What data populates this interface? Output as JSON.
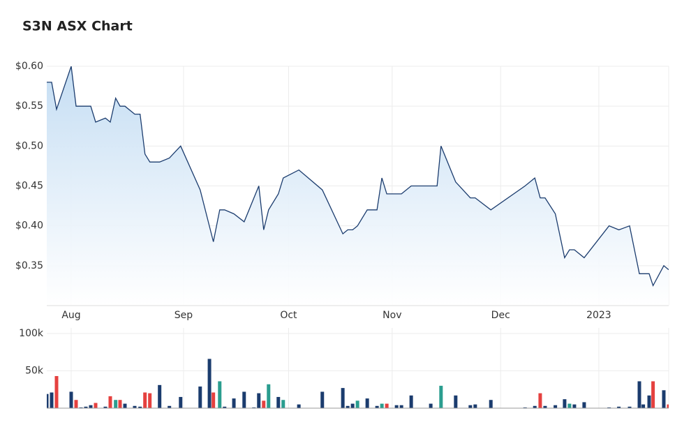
{
  "chart_data": [
    {
      "type": "area",
      "title": "S3N ASX Chart",
      "color": "#1b3c6e",
      "fill_top": "#c4ddf3",
      "grid": true,
      "x": [
        0,
        1,
        2,
        5,
        6,
        9,
        10,
        12,
        13,
        14.1,
        15,
        16,
        18,
        19.1,
        20.1,
        21.1,
        23.1,
        25.1,
        27.4,
        31.4,
        34.1,
        35.4,
        36.4,
        38.3,
        40.4,
        43.4,
        44.4,
        45.4,
        47.4,
        48.4,
        51.6,
        56.4,
        60.6,
        61.6,
        62.6,
        63.6,
        65.6,
        67.6,
        68.6,
        69.6,
        72.6,
        74.6,
        79.9,
        80.7,
        83.7,
        86.7,
        87.7,
        90.9,
        97.9,
        99.9,
        101,
        102,
        104.1,
        106,
        107,
        108,
        110,
        115.1,
        117.1,
        119.3,
        121.3,
        123.3,
        124.1,
        126.3,
        127.3
      ],
      "values": [
        0.58,
        0.58,
        0.546,
        0.6,
        0.55,
        0.55,
        0.53,
        0.535,
        0.53,
        0.56,
        0.55,
        0.55,
        0.54,
        0.54,
        0.49,
        0.48,
        0.48,
        0.485,
        0.5,
        0.445,
        0.38,
        0.42,
        0.42,
        0.415,
        0.405,
        0.45,
        0.395,
        0.42,
        0.44,
        0.46,
        0.47,
        0.445,
        0.39,
        0.395,
        0.395,
        0.4,
        0.42,
        0.42,
        0.46,
        0.44,
        0.44,
        0.45,
        0.45,
        0.5,
        0.455,
        0.435,
        0.435,
        0.42,
        0.45,
        0.46,
        0.435,
        0.435,
        0.415,
        0.36,
        0.37,
        0.37,
        0.36,
        0.4,
        0.395,
        0.4,
        0.34,
        0.34,
        0.325,
        0.35,
        0.345
      ],
      "xlim": [
        0,
        127.3
      ],
      "xticks": [
        {
          "value": 5,
          "label": "Aug"
        },
        {
          "value": 28,
          "label": "Sep"
        },
        {
          "value": 49.5,
          "label": "Oct"
        },
        {
          "value": 70.7,
          "label": "Nov"
        },
        {
          "value": 92.9,
          "label": "Dec"
        },
        {
          "value": 113,
          "label": "2023"
        }
      ],
      "ylim": [
        0.3,
        0.6
      ],
      "yticks": [
        {
          "value": 0.35,
          "label": "$0.35"
        },
        {
          "value": 0.4,
          "label": "$0.40"
        },
        {
          "value": 0.45,
          "label": "$0.45"
        },
        {
          "value": 0.5,
          "label": "$0.50"
        },
        {
          "value": 0.55,
          "label": "$0.55"
        },
        {
          "value": 0.6,
          "label": "$0.60"
        }
      ]
    },
    {
      "type": "bar",
      "grid": true,
      "x": [
        0,
        1,
        2,
        5,
        6,
        7,
        8,
        9,
        10,
        12,
        13,
        14.1,
        15,
        16,
        18,
        19.1,
        20.1,
        21.1,
        23.1,
        25.1,
        27.4,
        31.4,
        33.3,
        34.1,
        35.4,
        36.4,
        38.3,
        40.4,
        42.4,
        43.4,
        44.4,
        45.4,
        47.4,
        48.4,
        51.6,
        56.4,
        60.6,
        61.6,
        62.6,
        63.6,
        65.6,
        67.6,
        68.6,
        69.6,
        71.6,
        72.6,
        74.6,
        78.6,
        80.7,
        83.7,
        86.7,
        87.7,
        90.9,
        97.9,
        99.9,
        101,
        102,
        104.1,
        106,
        107,
        108,
        110,
        115.1,
        117.1,
        119.3,
        121.3,
        122.1,
        123.3,
        124.1,
        126.3,
        127.3
      ],
      "values": [
        19000,
        21000,
        43000,
        22000,
        11000,
        1000,
        2000,
        4000,
        7000,
        2000,
        16000,
        11000,
        11000,
        6000,
        3000,
        2000,
        21000,
        20000,
        31000,
        3000,
        15000,
        29000,
        66000,
        21000,
        36000,
        2000,
        13000,
        22000,
        1000,
        20000,
        10000,
        32000,
        15000,
        11000,
        5000,
        22000,
        27000,
        3000,
        6000,
        10000,
        13000,
        3000,
        6000,
        6000,
        4000,
        4000,
        17000,
        6000,
        30000,
        17000,
        4000,
        5000,
        11000,
        1000,
        3000,
        20000,
        3000,
        4000,
        12000,
        6000,
        5000,
        8000,
        1000,
        2000,
        2000,
        36000,
        5000,
        17000,
        36000,
        24000,
        5000
      ],
      "colors": [
        "#1b3c6e",
        "#1b3c6e",
        "#e5413f",
        "#1b3c6e",
        "#e5413f",
        "#1b3c6e",
        "#1b3c6e",
        "#1b3c6e",
        "#e5413f",
        "#1b3c6e",
        "#e5413f",
        "#2a9d8f",
        "#e5413f",
        "#1b3c6e",
        "#1b3c6e",
        "#1b3c6e",
        "#e5413f",
        "#e5413f",
        "#1b3c6e",
        "#1b3c6e",
        "#1b3c6e",
        "#1b3c6e",
        "#1b3c6e",
        "#e5413f",
        "#2a9d8f",
        "#1b3c6e",
        "#1b3c6e",
        "#1b3c6e",
        "#1b3c6e",
        "#1b3c6e",
        "#e5413f",
        "#2a9d8f",
        "#1b3c6e",
        "#2a9d8f",
        "#1b3c6e",
        "#1b3c6e",
        "#1b3c6e",
        "#1b3c6e",
        "#1b3c6e",
        "#2a9d8f",
        "#1b3c6e",
        "#1b3c6e",
        "#2a9d8f",
        "#e5413f",
        "#1b3c6e",
        "#1b3c6e",
        "#1b3c6e",
        "#1b3c6e",
        "#2a9d8f",
        "#1b3c6e",
        "#1b3c6e",
        "#1b3c6e",
        "#1b3c6e",
        "#1b3c6e",
        "#1b3c6e",
        "#e5413f",
        "#1b3c6e",
        "#1b3c6e",
        "#1b3c6e",
        "#2a9d8f",
        "#1b3c6e",
        "#1b3c6e",
        "#1b3c6e",
        "#1b3c6e",
        "#1b3c6e",
        "#1b3c6e",
        "#1b3c6e",
        "#1b3c6e",
        "#e5413f",
        "#1b3c6e",
        "#e5413f"
      ],
      "ylim": [
        0,
        100000
      ],
      "yticks": [
        {
          "value": 50000,
          "label": "50k"
        },
        {
          "value": 100000,
          "label": "100k"
        }
      ]
    }
  ]
}
